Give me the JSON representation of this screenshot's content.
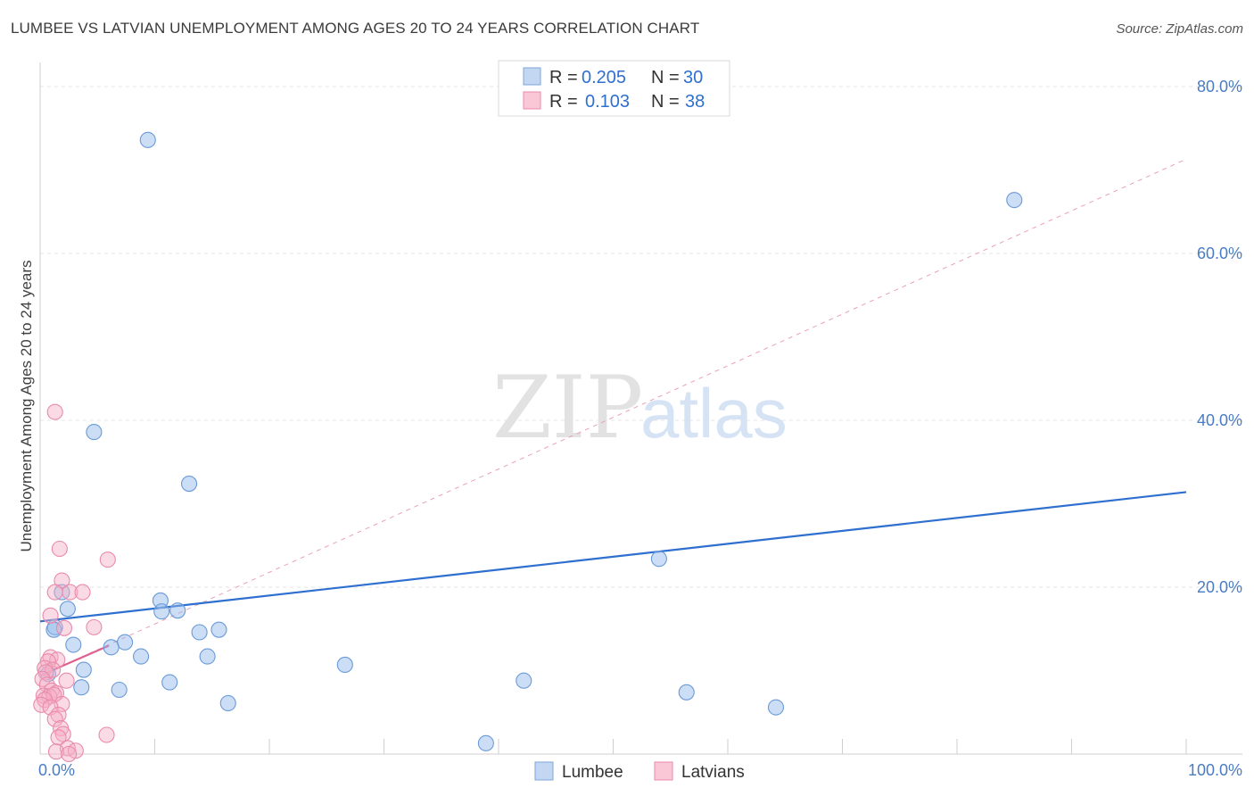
{
  "title": "LUMBEE VS LATVIAN UNEMPLOYMENT AMONG AGES 20 TO 24 YEARS CORRELATION CHART",
  "source": "Source: ZipAtlas.com",
  "watermark": {
    "part1": "ZIP",
    "part2": "atlas"
  },
  "legend": {
    "rows": [
      {
        "r_label": "R =",
        "r_value": "0.205",
        "n_label": "N =",
        "n_value": "30"
      },
      {
        "r_label": "R =",
        "r_value": "0.103",
        "n_label": "N =",
        "n_value": "38"
      }
    ]
  },
  "chart_data": {
    "type": "scatter",
    "title": "LUMBEE VS LATVIAN UNEMPLOYMENT AMONG AGES 20 TO 24 YEARS CORRELATION CHART",
    "xlabel": "",
    "ylabel": "Unemployment Among Ages 20 to 24 years",
    "xlim": [
      0,
      100
    ],
    "ylim": [
      0,
      80
    ],
    "x_tick_labels": [
      "0.0%",
      "100.0%"
    ],
    "y_ticks": [
      20,
      40,
      60,
      80
    ],
    "y_tick_labels": [
      "20.0%",
      "40.0%",
      "60.0%",
      "80.0%"
    ],
    "grid": true,
    "legend_position": "top-center",
    "series": [
      {
        "name": "Lumbee",
        "color": "#8fb5e8",
        "stroke": "#6a9ad8",
        "trend_color": "#2e6fcf",
        "trend": {
          "x": [
            0,
            100
          ],
          "y": [
            15.9,
            31.4
          ],
          "style": "solid"
        },
        "points": [
          {
            "x": 9.4,
            "y": 73.6
          },
          {
            "x": 85.0,
            "y": 66.4
          },
          {
            "x": 4.7,
            "y": 38.6
          },
          {
            "x": 13.0,
            "y": 32.4
          },
          {
            "x": 54.0,
            "y": 23.4
          },
          {
            "x": 1.9,
            "y": 19.4
          },
          {
            "x": 10.5,
            "y": 18.4
          },
          {
            "x": 2.4,
            "y": 17.4
          },
          {
            "x": 10.6,
            "y": 17.1
          },
          {
            "x": 12.0,
            "y": 17.2
          },
          {
            "x": 1.3,
            "y": 15.2
          },
          {
            "x": 15.6,
            "y": 14.9
          },
          {
            "x": 13.9,
            "y": 14.6
          },
          {
            "x": 2.9,
            "y": 13.1
          },
          {
            "x": 7.4,
            "y": 13.4
          },
          {
            "x": 6.2,
            "y": 12.8
          },
          {
            "x": 8.8,
            "y": 11.7
          },
          {
            "x": 14.6,
            "y": 11.7
          },
          {
            "x": 26.6,
            "y": 10.7
          },
          {
            "x": 3.8,
            "y": 10.1
          },
          {
            "x": 0.7,
            "y": 9.6
          },
          {
            "x": 11.3,
            "y": 8.6
          },
          {
            "x": 3.6,
            "y": 8.0
          },
          {
            "x": 6.9,
            "y": 7.7
          },
          {
            "x": 42.2,
            "y": 8.8
          },
          {
            "x": 56.4,
            "y": 7.4
          },
          {
            "x": 16.4,
            "y": 6.1
          },
          {
            "x": 64.2,
            "y": 5.6
          },
          {
            "x": 38.9,
            "y": 1.3
          },
          {
            "x": 1.2,
            "y": 14.9
          }
        ]
      },
      {
        "name": "Latvians",
        "color": "#f4b0c6",
        "stroke": "#e98aab",
        "trend_color": "#e06090",
        "trend": {
          "x": [
            0,
            6.0
          ],
          "y": [
            9.4,
            13.0
          ],
          "style": "solid"
        },
        "trend_extended": {
          "x": [
            0,
            100
          ],
          "y": [
            9.4,
            71.3
          ],
          "style": "dashed"
        },
        "points": [
          {
            "x": 1.3,
            "y": 41.0
          },
          {
            "x": 1.7,
            "y": 24.6
          },
          {
            "x": 5.9,
            "y": 23.3
          },
          {
            "x": 1.9,
            "y": 20.8
          },
          {
            "x": 1.3,
            "y": 19.4
          },
          {
            "x": 2.6,
            "y": 19.4
          },
          {
            "x": 3.7,
            "y": 19.4
          },
          {
            "x": 0.9,
            "y": 16.6
          },
          {
            "x": 2.1,
            "y": 15.1
          },
          {
            "x": 4.7,
            "y": 15.2
          },
          {
            "x": 0.9,
            "y": 11.6
          },
          {
            "x": 1.5,
            "y": 11.3
          },
          {
            "x": 0.7,
            "y": 11.1
          },
          {
            "x": 0.4,
            "y": 10.3
          },
          {
            "x": 1.1,
            "y": 10.1
          },
          {
            "x": 0.5,
            "y": 9.8
          },
          {
            "x": 0.2,
            "y": 9.0
          },
          {
            "x": 2.3,
            "y": 8.8
          },
          {
            "x": 0.6,
            "y": 8.3
          },
          {
            "x": 1.0,
            "y": 7.6
          },
          {
            "x": 1.4,
            "y": 7.3
          },
          {
            "x": 0.3,
            "y": 7.0
          },
          {
            "x": 0.8,
            "y": 6.9
          },
          {
            "x": 1.2,
            "y": 7.1
          },
          {
            "x": 0.4,
            "y": 6.5
          },
          {
            "x": 1.9,
            "y": 6.0
          },
          {
            "x": 0.1,
            "y": 5.9
          },
          {
            "x": 0.9,
            "y": 5.6
          },
          {
            "x": 1.6,
            "y": 4.7
          },
          {
            "x": 1.3,
            "y": 4.2
          },
          {
            "x": 1.8,
            "y": 3.1
          },
          {
            "x": 2.0,
            "y": 2.4
          },
          {
            "x": 5.8,
            "y": 2.3
          },
          {
            "x": 1.6,
            "y": 2.0
          },
          {
            "x": 2.4,
            "y": 0.7
          },
          {
            "x": 3.1,
            "y": 0.4
          },
          {
            "x": 1.4,
            "y": 0.3
          },
          {
            "x": 2.5,
            "y": 0.0
          }
        ]
      }
    ]
  }
}
